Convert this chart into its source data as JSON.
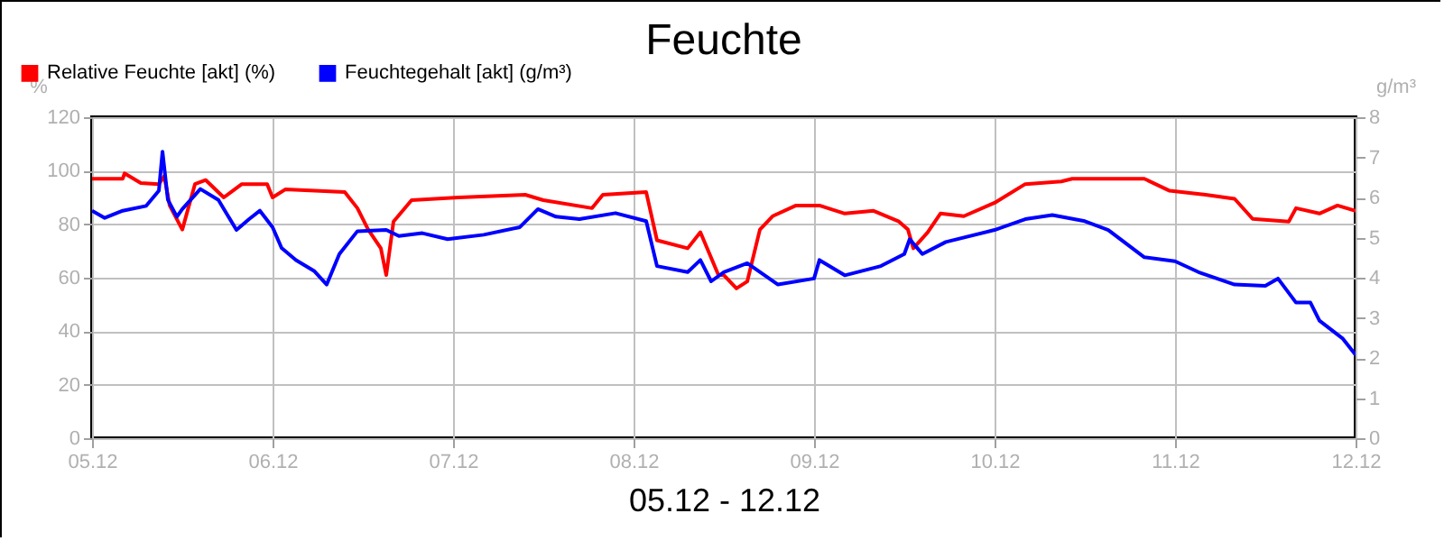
{
  "chart_data": {
    "type": "line",
    "title": "Feuchte",
    "xlabel": "05.12 - 12.12",
    "ylabel": "%",
    "y2label": "g/m³",
    "xlim": [
      "--12-05",
      "--12-12"
    ],
    "xticks": [
      {
        "value": "--12-05",
        "label": "05.12"
      },
      {
        "value": "--12-06",
        "label": "06.12"
      },
      {
        "value": "--12-07",
        "label": "07.12"
      },
      {
        "value": "--12-08",
        "label": "08.12"
      },
      {
        "value": "--12-09",
        "label": "09.12"
      },
      {
        "value": "--12-10",
        "label": "10.12"
      },
      {
        "value": "--12-11",
        "label": "11.12"
      },
      {
        "value": "--12-12",
        "label": "12.12"
      }
    ],
    "ylim": [
      0,
      120
    ],
    "yticks": [
      0,
      20,
      40,
      60,
      80,
      100,
      120
    ],
    "y2lim": [
      0,
      8
    ],
    "y2ticks": [
      0,
      1,
      2,
      3,
      4,
      5,
      6,
      7,
      8
    ],
    "grid": true,
    "legend": "top left",
    "marker": "none",
    "line_style": "solid",
    "series": [
      {
        "name": "Relative Feuchte [akt] (%)",
        "color": "#ff0000",
        "x": [
          "--12-05T00:00",
          "--12-05T04:05",
          "--12-05T04:19",
          "--12-05T06:29",
          "--12-05T08:53",
          "--12-05T09:36",
          "--12-05T10:19",
          "--12-05T12:00",
          "--12-05T13:41",
          "--12-05T15:07",
          "--12-05T17:31",
          "--12-05T19:55",
          "--12-05T23:17",
          "--12-06T00:00",
          "--12-06T01:41",
          "--12-06T09:36",
          "--12-06T11:17",
          "--12-06T12:43",
          "--12-06T14:24",
          "--12-06T15:07",
          "--12-06T16:05",
          "--12-06T18:29",
          "--12-07T00:43",
          "--12-07T09:36",
          "--12-07T12:00",
          "--12-07T18:29",
          "--12-07T19:55",
          "--12-08T01:41",
          "--12-08T03:07",
          "--12-08T07:12",
          "--12-08T08:53",
          "--12-08T11:17",
          "--12-08T12:00",
          "--12-08T13:41",
          "--12-08T15:07",
          "--12-08T16:48",
          "--12-08T18:29",
          "--12-08T21:36",
          "--12-09T00:43",
          "--12-09T04:05",
          "--12-09T07:55",
          "--12-09T11:17",
          "--12-09T12:29",
          "--12-09T13:12",
          "--12-09T15:07",
          "--12-09T16:48",
          "--12-09T19:55",
          "--12-10T00:00",
          "--12-10T04:05",
          "--12-10T08:53",
          "--12-10T10:19",
          "--12-10T19:55",
          "--12-10T23:17",
          "--12-11T04:05",
          "--12-11T07:55",
          "--12-11T10:19",
          "--12-11T15:07",
          "--12-11T16:05",
          "--12-11T19:12",
          "--12-11T21:36",
          "--12-12T00:00"
        ],
        "values": [
          97,
          97,
          99,
          95.4,
          95,
          98,
          87,
          78,
          95,
          96.5,
          90,
          95,
          95,
          90,
          93,
          92,
          86,
          78,
          71,
          61,
          81,
          89,
          90,
          91,
          89,
          86,
          91,
          92,
          74,
          71,
          77,
          61,
          61,
          56,
          58.6,
          78,
          83,
          87,
          87,
          84,
          85,
          81,
          78,
          71,
          77,
          84,
          83,
          88,
          95,
          96,
          97,
          97,
          92.5,
          91,
          89.5,
          82,
          81,
          86,
          84,
          87,
          85
        ]
      },
      {
        "name": "Feuchtegehalt [akt] (g/m³)",
        "color": "#0000ff",
        "axis": "y2",
        "x": [
          "--12-05T00:00",
          "--12-05T01:41",
          "--12-05T04:05",
          "--12-05T07:12",
          "--12-05T08:53",
          "--12-05T09:22",
          "--12-05T10:05",
          "--12-05T11:17",
          "--12-05T12:00",
          "--12-05T14:24",
          "--12-05T16:48",
          "--12-05T19:12",
          "--12-05T20:53",
          "--12-05T22:19",
          "--12-06T00:00",
          "--12-06T01:12",
          "--12-06T03:07",
          "--12-06T05:31",
          "--12-06T07:12",
          "--12-06T08:53",
          "--12-06T11:17",
          "--12-06T15:07",
          "--12-06T16:48",
          "--12-06T19:55",
          "--12-06T23:17",
          "--12-07T04:05",
          "--12-07T08:53",
          "--12-07T11:17",
          "--12-07T13:41",
          "--12-07T16:48",
          "--12-07T21:36",
          "--12-08T01:41",
          "--12-08T03:07",
          "--12-08T07:12",
          "--12-08T08:53",
          "--12-08T10:19",
          "--12-08T12:00",
          "--12-08T15:07",
          "--12-08T19:12",
          "--12-09T00:00",
          "--12-09T00:43",
          "--12-09T04:05",
          "--12-09T08:53",
          "--12-09T12:00",
          "--12-09T12:43",
          "--12-09T14:24",
          "--12-09T17:31",
          "--12-10T00:00",
          "--12-10T04:05",
          "--12-10T07:41",
          "--12-10T12:00",
          "--12-10T15:07",
          "--12-10T19:55",
          "--12-11T00:00",
          "--12-11T03:07",
          "--12-11T07:55",
          "--12-11T12:00",
          "--12-11T13:41",
          "--12-11T16:05",
          "--12-11T18:00",
          "--12-11T19:12",
          "--12-11T22:19",
          "--12-12T00:00"
        ],
        "values": [
          5.67,
          5.49,
          5.67,
          5.79,
          6.17,
          7.14,
          5.94,
          5.52,
          5.71,
          6.21,
          5.94,
          5.19,
          5.46,
          5.67,
          5.26,
          4.74,
          4.44,
          4.17,
          3.83,
          4.59,
          5.16,
          5.19,
          5.04,
          5.11,
          4.96,
          5.07,
          5.26,
          5.71,
          5.52,
          5.46,
          5.61,
          5.41,
          4.29,
          4.14,
          4.44,
          3.91,
          4.14,
          4.36,
          3.83,
          3.98,
          4.44,
          4.06,
          4.29,
          4.59,
          4.96,
          4.59,
          4.89,
          5.19,
          5.46,
          5.56,
          5.41,
          5.19,
          4.51,
          4.41,
          4.14,
          3.83,
          3.8,
          3.98,
          3.38,
          3.38,
          2.93,
          2.48,
          2.08
        ]
      }
    ]
  }
}
